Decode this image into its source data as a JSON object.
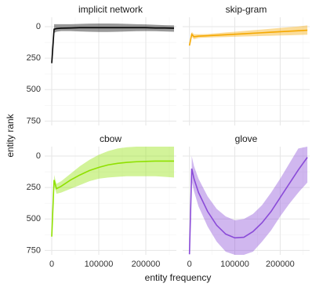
{
  "x_label": "entity frequency",
  "y_label": "entity rank",
  "chart_data": [
    {
      "type": "line",
      "title": "implicit network",
      "color": "#000000",
      "x": [
        0,
        5000,
        10000,
        20000,
        40000,
        60000,
        80000,
        100000,
        120000,
        140000,
        160000,
        180000,
        200000,
        220000,
        240000,
        260000
      ],
      "values": [
        290,
        20,
        15,
        12,
        10,
        8,
        8,
        8,
        8,
        8,
        8,
        8,
        8,
        10,
        10,
        12
      ],
      "band_low": [
        null,
        -20,
        -20,
        -20,
        -20,
        -22,
        -24,
        -25,
        -25,
        -24,
        -22,
        -20,
        -18,
        -15,
        -12,
        -10
      ],
      "band_high": [
        null,
        50,
        40,
        35,
        35,
        38,
        40,
        42,
        42,
        40,
        38,
        36,
        35,
        36,
        38,
        40
      ],
      "xlim": [
        -15000,
        265000
      ],
      "ylim": [
        785,
        -75
      ],
      "xticks": [
        0,
        100000,
        200000
      ],
      "yticks": [
        0,
        250,
        500,
        750
      ],
      "xminor": [
        50000,
        150000,
        250000
      ],
      "yminor": [
        125,
        375,
        625
      ]
    },
    {
      "type": "line",
      "title": "skip-gram",
      "color": "#f5a800",
      "x": [
        0,
        5000,
        10000,
        20000,
        40000,
        60000,
        80000,
        100000,
        120000,
        140000,
        160000,
        180000,
        200000,
        220000,
        240000,
        260000
      ],
      "values": [
        150,
        60,
        80,
        75,
        72,
        68,
        64,
        60,
        56,
        52,
        48,
        44,
        40,
        36,
        32,
        28
      ],
      "band_low": [
        null,
        40,
        60,
        60,
        58,
        52,
        46,
        40,
        34,
        28,
        22,
        16,
        10,
        4,
        -2,
        -10
      ],
      "band_high": [
        null,
        80,
        100,
        90,
        86,
        84,
        82,
        80,
        78,
        76,
        74,
        72,
        70,
        68,
        66,
        64
      ],
      "xlim": [
        -15000,
        265000
      ],
      "ylim": [
        785,
        -75
      ],
      "xticks": [
        0,
        100000,
        200000
      ],
      "yticks": [
        0,
        250,
        500,
        750
      ],
      "xminor": [
        50000,
        150000,
        250000
      ],
      "yminor": [
        125,
        375,
        625
      ]
    },
    {
      "type": "line",
      "title": "cbow",
      "color": "#8fe000",
      "x": [
        0,
        5000,
        10000,
        20000,
        40000,
        60000,
        80000,
        100000,
        120000,
        140000,
        160000,
        180000,
        200000,
        220000,
        240000,
        260000
      ],
      "values": [
        640,
        190,
        260,
        240,
        190,
        150,
        115,
        90,
        70,
        58,
        50,
        45,
        42,
        40,
        40,
        40
      ],
      "band_low": [
        null,
        150,
        220,
        200,
        140,
        80,
        30,
        -10,
        -40,
        -60,
        -70,
        -75,
        -75,
        -75,
        -75,
        -75
      ],
      "band_high": [
        null,
        230,
        300,
        290,
        260,
        230,
        200,
        180,
        170,
        165,
        160,
        160,
        160,
        160,
        165,
        170
      ],
      "xlim": [
        -15000,
        265000
      ],
      "ylim": [
        785,
        -75
      ],
      "xticks": [
        0,
        100000,
        200000
      ],
      "yticks": [
        0,
        250,
        500,
        750
      ],
      "xminor": [
        50000,
        150000,
        250000
      ],
      "yminor": [
        125,
        375,
        625
      ]
    },
    {
      "type": "line",
      "title": "glove",
      "color": "#8a4bd8",
      "x": [
        0,
        5000,
        10000,
        20000,
        40000,
        60000,
        80000,
        100000,
        120000,
        140000,
        160000,
        180000,
        200000,
        220000,
        240000,
        260000
      ],
      "values": [
        780,
        100,
        180,
        290,
        440,
        550,
        620,
        650,
        645,
        600,
        530,
        440,
        330,
        220,
        110,
        10
      ],
      "band_low": [
        null,
        0,
        80,
        180,
        320,
        420,
        480,
        510,
        500,
        460,
        390,
        290,
        180,
        60,
        -60,
        -75
      ],
      "band_high": [
        null,
        200,
        280,
        400,
        560,
        680,
        760,
        785,
        785,
        760,
        680,
        590,
        480,
        380,
        290,
        210
      ],
      "xlim": [
        -15000,
        265000
      ],
      "ylim": [
        785,
        -75
      ],
      "xticks": [
        0,
        100000,
        200000
      ],
      "yticks": [
        0,
        250,
        500,
        750
      ],
      "xminor": [
        50000,
        150000,
        250000
      ],
      "yminor": [
        125,
        375,
        625
      ]
    }
  ]
}
